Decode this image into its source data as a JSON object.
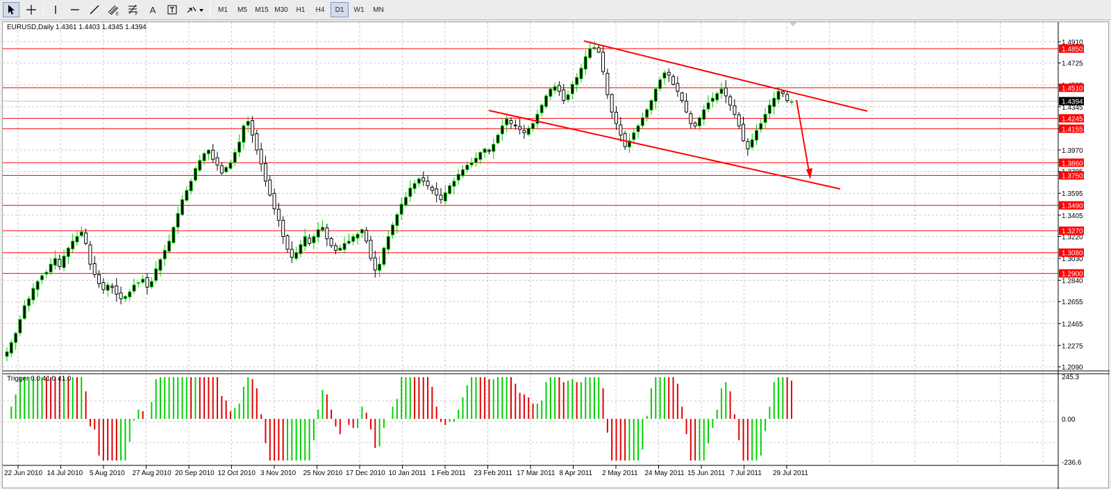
{
  "toolbar": {
    "timeframes": [
      "M1",
      "M5",
      "M15",
      "M30",
      "H1",
      "H4",
      "D1",
      "W1",
      "MN"
    ],
    "active_timeframe": "D1",
    "text_tool_label": "A"
  },
  "chart": {
    "header": "EURUSD,Daily  1.4361 1.4403 1.4345 1.4394",
    "current_price": "1.4394",
    "price_axis_labels": [
      "1.4910",
      "1.4725",
      "1.4535",
      "1.4345",
      "1.4155",
      "1.3970",
      "1.3785",
      "1.3595",
      "1.3405",
      "1.3220",
      "1.3030",
      "1.2840",
      "1.2655",
      "1.2465",
      "1.2275",
      "1.2090"
    ],
    "level_labels": [
      "1.4850",
      "1.4510",
      "1.4245",
      "1.4155",
      "1.3860",
      "1.3750",
      "1.3490",
      "1.3270",
      "1.3080",
      "1.2900"
    ],
    "date_labels": [
      "22 Jun 2010",
      "14 Jul 2010",
      "5 Aug 2010",
      "27 Aug 2010",
      "20 Sep 2010",
      "12 Oct 2010",
      "3 Nov 2010",
      "25 Nov 2010",
      "17 Dec 2010",
      "10 Jan 2011",
      "1 Feb 2011",
      "23 Feb 2011",
      "17 Mar 2011",
      "8 Apr 2011",
      "2 May 2011",
      "24 May 2011",
      "15 Jun 2011",
      "7 Jul 2011",
      "29 Jul 2011"
    ],
    "colors": {
      "bull": "#00c800",
      "bear": "#000000",
      "level": "#ff0000",
      "grid": "#c8c8c8"
    }
  },
  "indicator": {
    "header": "Trigger 0.0 41.0 41.0",
    "axis_labels": [
      "245.3",
      "0.00",
      "-236.6"
    ],
    "colors": {
      "up": "#00d000",
      "down": "#e00000"
    }
  },
  "chart_data": {
    "type": "candlestick",
    "symbol": "EURUSD",
    "timeframe": "Daily",
    "last_bar": {
      "open": 1.4361,
      "high": 1.4403,
      "low": 1.4345,
      "close": 1.4394
    },
    "price_range": [
      1.209,
      1.491
    ],
    "horizontal_levels": [
      1.485,
      1.451,
      1.4245,
      1.4155,
      1.386,
      1.375,
      1.349,
      1.327,
      1.308,
      1.29
    ],
    "approx_closes": [
      1.222,
      1.23,
      1.238,
      1.25,
      1.262,
      1.268,
      1.277,
      1.283,
      1.288,
      1.291,
      1.298,
      1.303,
      1.296,
      1.305,
      1.312,
      1.318,
      1.322,
      1.326,
      1.316,
      1.298,
      1.289,
      1.281,
      1.276,
      1.28,
      1.278,
      1.272,
      1.268,
      1.27,
      1.274,
      1.28,
      1.282,
      1.285,
      1.278,
      1.283,
      1.294,
      1.302,
      1.31,
      1.318,
      1.33,
      1.342,
      1.354,
      1.362,
      1.37,
      1.381,
      1.388,
      1.394,
      1.397,
      1.389,
      1.384,
      1.377,
      1.382,
      1.386,
      1.395,
      1.404,
      1.418,
      1.422,
      1.41,
      1.397,
      1.385,
      1.37,
      1.358,
      1.346,
      1.336,
      1.322,
      1.311,
      1.304,
      1.308,
      1.315,
      1.322,
      1.316,
      1.322,
      1.328,
      1.33,
      1.32,
      1.314,
      1.31,
      1.312,
      1.316,
      1.318,
      1.322,
      1.324,
      1.328,
      1.318,
      1.303,
      1.293,
      1.298,
      1.312,
      1.322,
      1.332,
      1.341,
      1.35,
      1.356,
      1.364,
      1.368,
      1.372,
      1.37,
      1.366,
      1.362,
      1.358,
      1.354,
      1.36,
      1.366,
      1.37,
      1.376,
      1.38,
      1.384,
      1.386,
      1.39,
      1.395,
      1.398,
      1.396,
      1.402,
      1.41,
      1.418,
      1.424,
      1.42,
      1.418,
      1.415,
      1.412,
      1.416,
      1.42,
      1.428,
      1.436,
      1.444,
      1.45,
      1.452,
      1.448,
      1.44,
      1.445,
      1.454,
      1.46,
      1.468,
      1.478,
      1.485,
      1.486,
      1.482,
      1.465,
      1.445,
      1.43,
      1.42,
      1.41,
      1.4,
      1.405,
      1.412,
      1.418,
      1.425,
      1.432,
      1.44,
      1.45,
      1.458,
      1.464,
      1.462,
      1.454,
      1.448,
      1.44,
      1.43,
      1.42,
      1.418,
      1.425,
      1.432,
      1.438,
      1.442,
      1.446,
      1.45,
      1.444,
      1.436,
      1.428,
      1.418,
      1.405,
      1.398,
      1.406,
      1.414,
      1.42,
      1.428,
      1.436,
      1.442,
      1.448,
      1.446,
      1.44,
      1.439
    ]
  }
}
